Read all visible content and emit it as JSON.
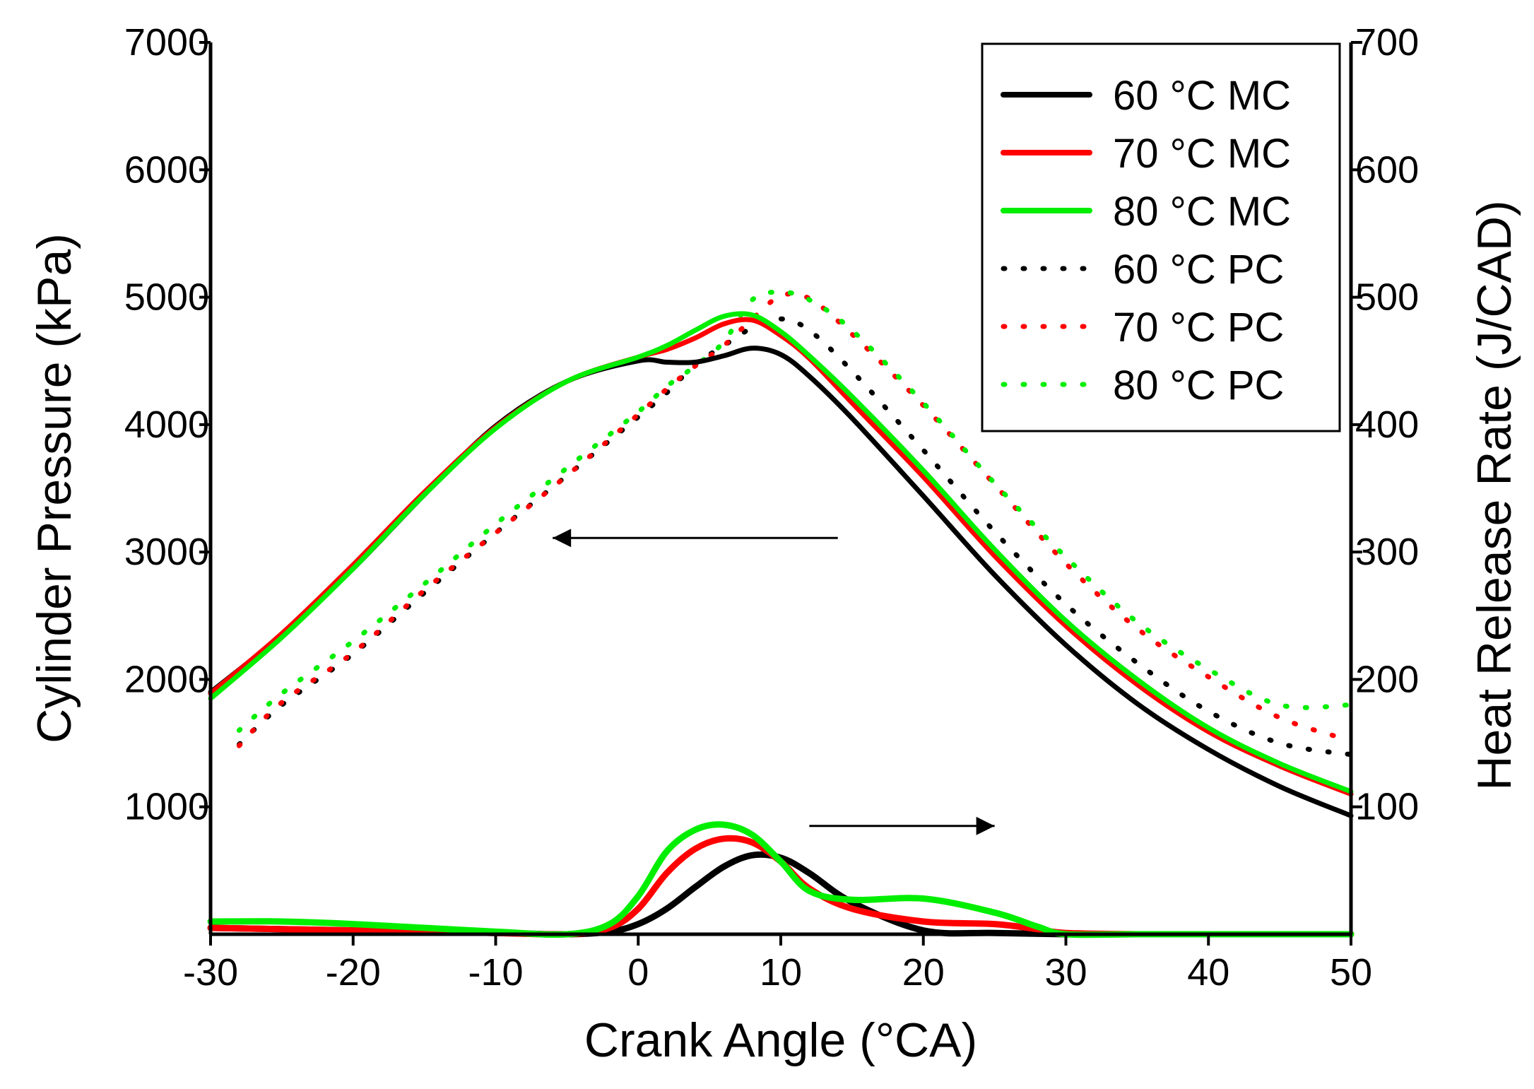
{
  "chart_data": {
    "type": "line",
    "xlabel": "Crank Angle (°CA)",
    "ylabel_left": "Cylinder Pressure (kPa)",
    "ylabel_right": "Heat Release Rate (J/CAD)",
    "xlim": [
      -30,
      50
    ],
    "ylim_left": [
      0,
      7000
    ],
    "ylim_right": [
      0,
      700
    ],
    "x_ticks": [
      -30,
      -20,
      -10,
      0,
      10,
      20,
      30,
      40,
      50
    ],
    "y_left_ticks": [
      1000,
      2000,
      3000,
      4000,
      5000,
      6000,
      7000
    ],
    "y_right_ticks": [
      100,
      200,
      300,
      400,
      500,
      600,
      700
    ],
    "grid": false,
    "legend_position": "top-right",
    "colors": {
      "black": "#000000",
      "red": "#ff0000",
      "green": "#00ee00"
    },
    "arrows": [
      {
        "direction": "left",
        "from": [
          14,
          3110
        ],
        "to": [
          -6,
          3110
        ]
      },
      {
        "direction": "right",
        "from": [
          12,
          850
        ],
        "to": [
          25,
          850
        ]
      }
    ],
    "series": [
      {
        "name": "60 °C MC",
        "axis": "left",
        "style": "solid",
        "color": "#000000",
        "x": [
          -30,
          -25,
          -20,
          -15,
          -10,
          -5,
          0,
          2,
          4,
          6,
          8,
          10,
          12,
          15,
          20,
          25,
          30,
          35,
          40,
          45,
          50
        ],
        "y": [
          1900,
          2350,
          2870,
          3450,
          3990,
          4340,
          4500,
          4490,
          4490,
          4540,
          4600,
          4550,
          4380,
          4050,
          3440,
          2820,
          2270,
          1810,
          1450,
          1160,
          930
        ]
      },
      {
        "name": "70 °C MC",
        "axis": "left",
        "style": "solid",
        "color": "#ff0000",
        "x": [
          -30,
          -25,
          -20,
          -15,
          -10,
          -5,
          0,
          2,
          4,
          6,
          8,
          10,
          12,
          15,
          20,
          25,
          30,
          35,
          40,
          45,
          50
        ],
        "y": [
          1890,
          2360,
          2900,
          3470,
          3980,
          4340,
          4530,
          4590,
          4680,
          4790,
          4820,
          4700,
          4520,
          4170,
          3590,
          2970,
          2420,
          1960,
          1590,
          1320,
          1100
        ]
      },
      {
        "name": "80 °C MC",
        "axis": "left",
        "style": "solid",
        "color": "#00ee00",
        "x": [
          -30,
          -25,
          -20,
          -15,
          -10,
          -5,
          0,
          2,
          4,
          6,
          8,
          10,
          12,
          15,
          20,
          25,
          30,
          35,
          40,
          45,
          50
        ],
        "y": [
          1850,
          2330,
          2870,
          3450,
          3970,
          4340,
          4530,
          4620,
          4740,
          4850,
          4860,
          4730,
          4540,
          4220,
          3640,
          3020,
          2460,
          2000,
          1620,
          1340,
          1120
        ]
      },
      {
        "name": "60 °C PC",
        "axis": "left",
        "style": "dotted",
        "color": "#000000",
        "x": [
          -28,
          -25,
          -20,
          -15,
          -10,
          -5,
          0,
          2,
          4,
          6,
          8,
          10,
          12,
          15,
          20,
          25,
          30,
          35,
          40,
          45,
          50
        ],
        "y": [
          1490,
          1800,
          2200,
          2680,
          3150,
          3600,
          4060,
          4250,
          4470,
          4620,
          4760,
          4830,
          4740,
          4420,
          3800,
          3160,
          2590,
          2130,
          1750,
          1500,
          1410
        ]
      },
      {
        "name": "70 °C PC",
        "axis": "left",
        "style": "dotted",
        "color": "#ff0000",
        "x": [
          -28,
          -25,
          -20,
          -15,
          -10,
          -5,
          0,
          2,
          4,
          6,
          8,
          10,
          12,
          15,
          20,
          25,
          30,
          35,
          40,
          45,
          50
        ],
        "y": [
          1480,
          1820,
          2210,
          2700,
          3150,
          3600,
          4080,
          4280,
          4460,
          4620,
          4830,
          5010,
          4990,
          4710,
          4150,
          3530,
          2910,
          2400,
          2020,
          1700,
          1520
        ]
      },
      {
        "name": "80 °C PC",
        "axis": "left",
        "style": "dotted",
        "color": "#00ee00",
        "x": [
          -28,
          -25,
          -20,
          -15,
          -10,
          -5,
          0,
          2,
          4,
          6,
          8,
          10,
          12,
          15,
          20,
          25,
          30,
          35,
          40,
          45,
          50
        ],
        "y": [
          1600,
          1890,
          2300,
          2750,
          3220,
          3660,
          4100,
          4300,
          4460,
          4650,
          4980,
          5040,
          4980,
          4740,
          4170,
          3540,
          2960,
          2450,
          2080,
          1800,
          1800
        ]
      },
      {
        "name": "60 °C MC",
        "axis": "right",
        "style": "solid",
        "color": "#000000",
        "x": [
          -30,
          -20,
          -10,
          -5,
          -2,
          0,
          2,
          4,
          6,
          8,
          10,
          12,
          15,
          20,
          25,
          30,
          35,
          40,
          45,
          50
        ],
        "y": [
          5,
          3,
          1,
          0,
          2,
          8,
          20,
          37,
          53,
          62,
          60,
          48,
          25,
          3,
          1,
          0,
          0,
          0,
          0,
          0
        ]
      },
      {
        "name": "70 °C MC",
        "axis": "right",
        "style": "solid",
        "color": "#ff0000",
        "x": [
          -30,
          -20,
          -10,
          -5,
          -2,
          0,
          2,
          4,
          6,
          8,
          10,
          12,
          15,
          20,
          25,
          28,
          30,
          35,
          40,
          45,
          50
        ],
        "y": [
          5,
          3,
          1,
          0,
          5,
          20,
          48,
          67,
          75,
          72,
          57,
          36,
          20,
          10,
          8,
          4,
          1,
          0,
          0,
          0,
          0
        ]
      },
      {
        "name": "80 °C MC",
        "axis": "right",
        "style": "solid",
        "color": "#00ee00",
        "x": [
          -30,
          -25,
          -20,
          -10,
          -5,
          -2,
          0,
          2,
          4,
          6,
          8,
          10,
          12,
          15,
          20,
          25,
          28,
          30,
          35,
          40,
          45,
          50
        ],
        "y": [
          10,
          10,
          8,
          2,
          0,
          8,
          30,
          65,
          82,
          86,
          78,
          57,
          34,
          27,
          28,
          17,
          6,
          0,
          0,
          0,
          0,
          0
        ]
      }
    ]
  }
}
